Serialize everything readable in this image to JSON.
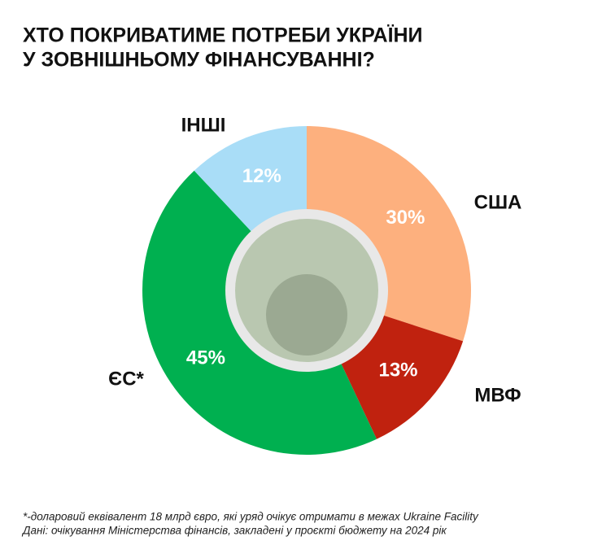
{
  "chart_data": {
    "type": "pie",
    "title": [
      "ХТО ПОКРИВАТИМЕ ПОТРЕБИ УКРАЇНИ",
      "У ЗОВНІШНЬОМУ ФІНАНСУВАННІ?"
    ],
    "categories": [
      "США",
      "МВФ",
      "ЄС*",
      "ІНШІ"
    ],
    "values": [
      30,
      13,
      45,
      12
    ],
    "value_labels": [
      "30%",
      "13%",
      "45%",
      "12%"
    ],
    "colors": [
      "#fdb07e",
      "#c0220f",
      "#00b050",
      "#a9ddf7"
    ],
    "notes": [
      "*-доларовий еквівалент 18 млрд євро, які уряд очікує отримати в межах Ukraine Facility",
      "Дані: очікування Міністерства фінансів, закладені у проєкті бюджету на 2024 рік"
    ]
  }
}
